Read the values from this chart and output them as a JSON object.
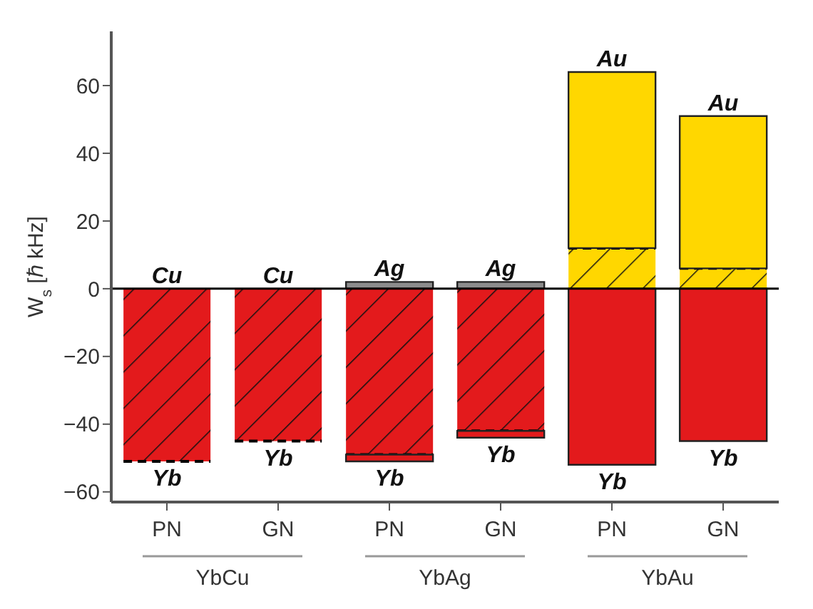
{
  "chart_data": {
    "type": "bar",
    "ylabel": "W$_{s}$ [ℏ kHz]",
    "categories": [
      "PN",
      "GN",
      "PN",
      "GN",
      "PN",
      "GN"
    ],
    "stacked": true,
    "ylim": [
      -63,
      76
    ],
    "yticks": [
      -60,
      -40,
      -20,
      0,
      20,
      40,
      60
    ],
    "grid": false,
    "legend": false,
    "annotations": [
      "YbCu",
      "YbAg",
      "YbAu"
    ],
    "ref_lines": [
      {
        "axis": "y",
        "value": 0,
        "color": "#000000"
      }
    ],
    "series": [
      {
        "line_style": "dashed",
        "colors": [
          "#e31a1c",
          "#e31a1c",
          "#e31a1c",
          "#e31a1c",
          "#ffd700",
          "#ffd700"
        ],
        "values": [
          -51,
          -45,
          -49,
          -42,
          12,
          6
        ],
        "value_labels": [
          "Yb",
          "Yb",
          null,
          null,
          null,
          null
        ]
      },
      {
        "color": "#e31a1c",
        "values": [
          0,
          0,
          -2,
          -2,
          -52,
          -45
        ],
        "value_labels": [
          null,
          null,
          "Yb",
          "Yb",
          "Yb",
          "Yb"
        ]
      },
      {
        "colors": [
          "#e31a1c",
          "#e31a1c",
          "#8c8c8c",
          "#8c8c8c",
          "#ffd700",
          "#ffd700"
        ],
        "values": [
          0,
          0,
          2,
          2,
          52,
          45
        ],
        "value_labels": [
          "Cu",
          "Cu",
          "Ag",
          "Ag",
          "Au",
          "Au"
        ]
      }
    ]
  }
}
